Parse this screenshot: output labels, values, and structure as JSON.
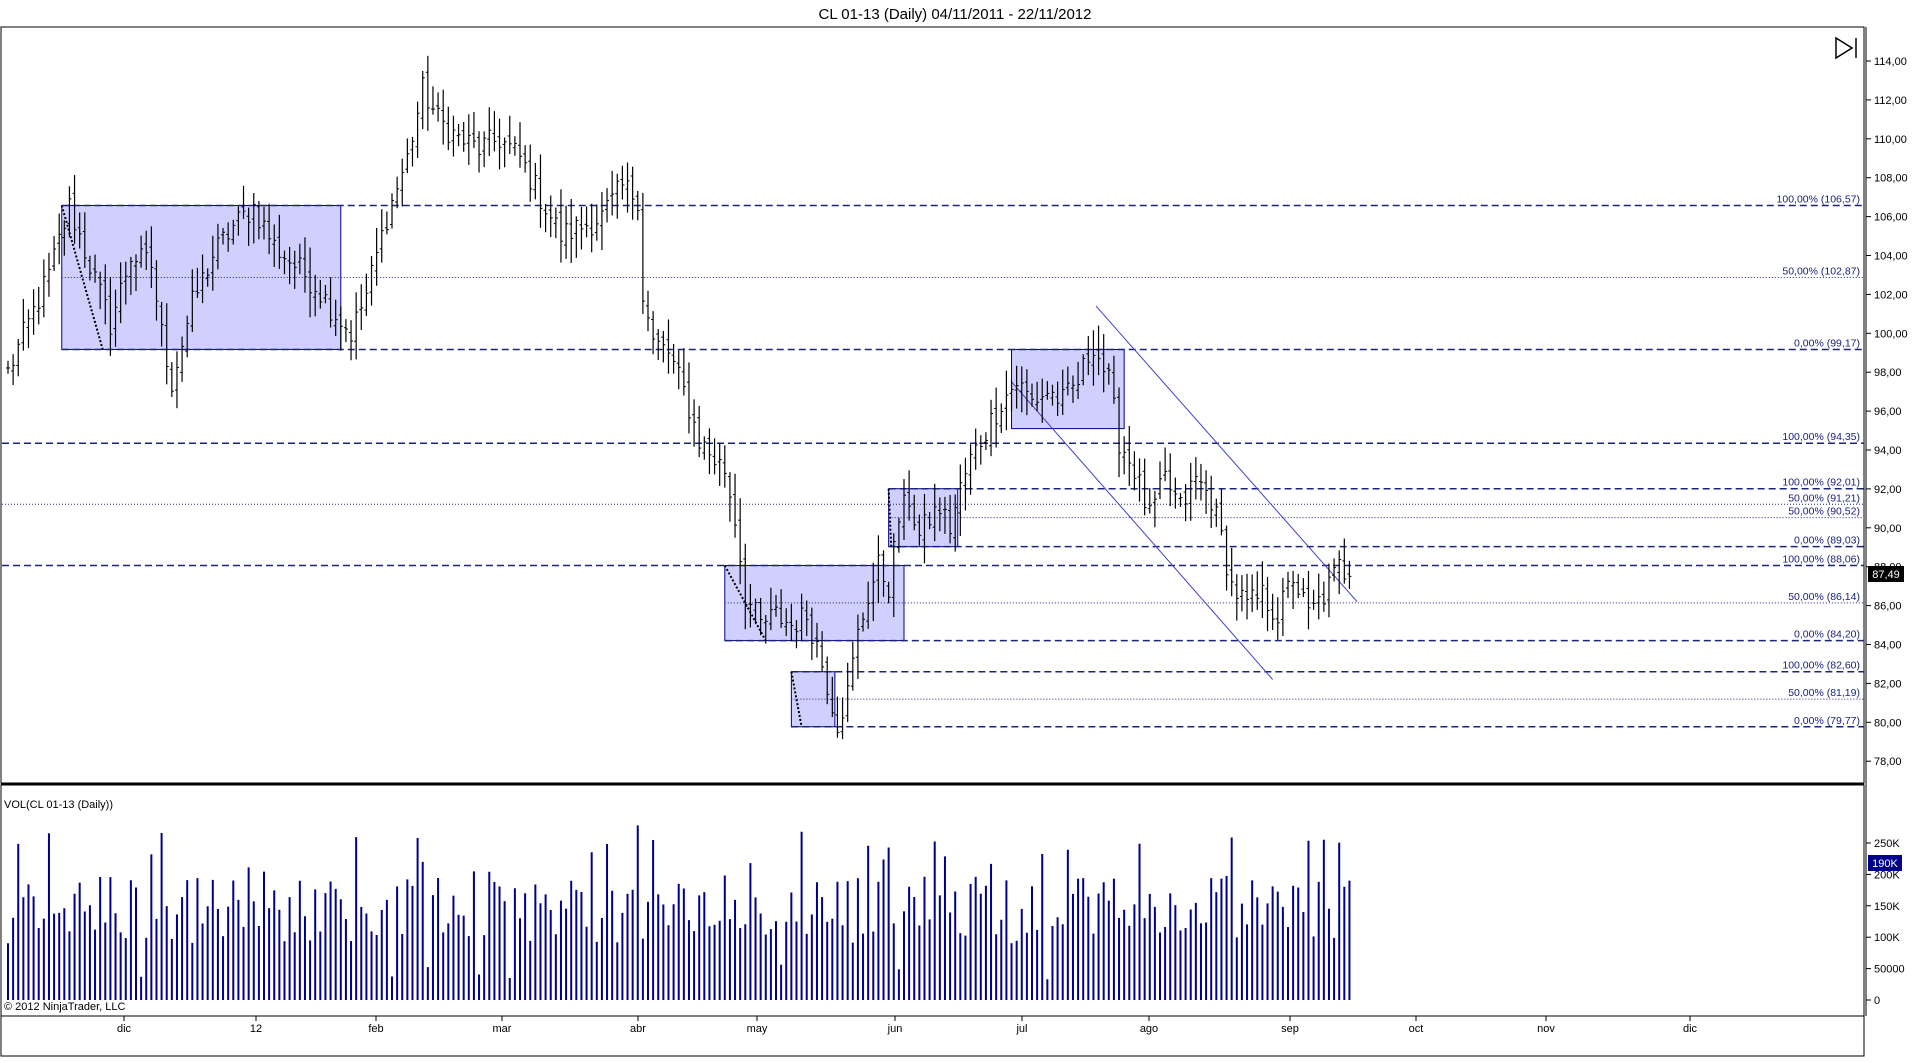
{
  "header": {
    "title": "CL 01-13 (Daily)  04/11/2011 - 22/11/2012"
  },
  "price_panel": {
    "last_price": "87,49"
  },
  "volume_panel": {
    "title": "VOL(CL 01-13 (Daily))",
    "last_volume": "190K"
  },
  "copyright": "© 2012 NinjaTrader, LLC",
  "colors": {
    "bar": "#000000",
    "volume": "#00008b",
    "zone_fill": "#c8c8ff",
    "zone_edge": "#00008b",
    "channel": "#4040c8",
    "level": "#1a237e"
  },
  "chart_data": [
    {
      "type": "ohlc",
      "instrument": "CL 01-13",
      "interval": "Daily",
      "ylim": [
        77,
        115.5
      ],
      "y_ticks": [
        "114,00",
        "112,00",
        "110,00",
        "108,00",
        "106,00",
        "104,00",
        "102,00",
        "100,00",
        "98,00",
        "96,00",
        "94,00",
        "92,00",
        "90,00",
        "88,00",
        "86,00",
        "84,00",
        "82,00",
        "80,00",
        "78,00"
      ],
      "x_ticks": [
        "dic",
        "12",
        "feb",
        "mar",
        "abr",
        "may",
        "jun",
        "jul",
        "ago",
        "sep",
        "oct",
        "nov",
        "dic"
      ],
      "anchors": [
        {
          "i": 0,
          "c": 98.0
        },
        {
          "i": 4,
          "c": 100.5
        },
        {
          "i": 8,
          "c": 103.0
        },
        {
          "i": 12,
          "c": 106.5
        },
        {
          "i": 16,
          "c": 103.5
        },
        {
          "i": 20,
          "c": 100.5
        },
        {
          "i": 24,
          "c": 104.0
        },
        {
          "i": 28,
          "c": 103.5
        },
        {
          "i": 30,
          "c": 100.0
        },
        {
          "i": 32,
          "c": 97.5
        },
        {
          "i": 36,
          "c": 101.5
        },
        {
          "i": 40,
          "c": 104.0
        },
        {
          "i": 44,
          "c": 105.5
        },
        {
          "i": 48,
          "c": 106.5
        },
        {
          "i": 52,
          "c": 104.5
        },
        {
          "i": 56,
          "c": 103.5
        },
        {
          "i": 60,
          "c": 102.5
        },
        {
          "i": 64,
          "c": 101.0
        },
        {
          "i": 67,
          "c": 100.0
        },
        {
          "i": 70,
          "c": 102.0
        },
        {
          "i": 74,
          "c": 106.0
        },
        {
          "i": 78,
          "c": 109.0
        },
        {
          "i": 81,
          "c": 112.5
        },
        {
          "i": 84,
          "c": 111.0
        },
        {
          "i": 88,
          "c": 110.0
        },
        {
          "i": 92,
          "c": 109.5
        },
        {
          "i": 96,
          "c": 110.0
        },
        {
          "i": 100,
          "c": 109.0
        },
        {
          "i": 104,
          "c": 107.0
        },
        {
          "i": 108,
          "c": 105.0
        },
        {
          "i": 112,
          "c": 105.5
        },
        {
          "i": 116,
          "c": 106.0
        },
        {
          "i": 120,
          "c": 107.5
        },
        {
          "i": 123,
          "c": 107.0
        },
        {
          "i": 124,
          "c": 102.0
        },
        {
          "i": 126,
          "c": 99.5
        },
        {
          "i": 129,
          "c": 99.0
        },
        {
          "i": 132,
          "c": 97.0
        },
        {
          "i": 135,
          "c": 94.5
        },
        {
          "i": 138,
          "c": 93.5
        },
        {
          "i": 140,
          "c": 93.0
        },
        {
          "i": 142,
          "c": 90.5
        },
        {
          "i": 144,
          "c": 86.5
        },
        {
          "i": 147,
          "c": 85.0
        },
        {
          "i": 150,
          "c": 85.5
        },
        {
          "i": 153,
          "c": 85.0
        },
        {
          "i": 156,
          "c": 85.5
        },
        {
          "i": 158,
          "c": 84.0
        },
        {
          "i": 160,
          "c": 82.0
        },
        {
          "i": 162,
          "c": 80.0
        },
        {
          "i": 164,
          "c": 81.5
        },
        {
          "i": 166,
          "c": 84.5
        },
        {
          "i": 168,
          "c": 86.5
        },
        {
          "i": 170,
          "c": 88.0
        },
        {
          "i": 172,
          "c": 87.0
        },
        {
          "i": 174,
          "c": 90.5
        },
        {
          "i": 176,
          "c": 91.5
        },
        {
          "i": 178,
          "c": 89.5
        },
        {
          "i": 180,
          "c": 90.5
        },
        {
          "i": 182,
          "c": 91.0
        },
        {
          "i": 184,
          "c": 90.0
        },
        {
          "i": 186,
          "c": 92.0
        },
        {
          "i": 188,
          "c": 93.5
        },
        {
          "i": 191,
          "c": 95.0
        },
        {
          "i": 194,
          "c": 96.5
        },
        {
          "i": 197,
          "c": 97.5
        },
        {
          "i": 200,
          "c": 96.5
        },
        {
          "i": 203,
          "c": 97.0
        },
        {
          "i": 206,
          "c": 96.5
        },
        {
          "i": 209,
          "c": 97.5
        },
        {
          "i": 212,
          "c": 99.5
        },
        {
          "i": 215,
          "c": 97.5
        },
        {
          "i": 217,
          "c": 94.5
        },
        {
          "i": 220,
          "c": 93.0
        },
        {
          "i": 223,
          "c": 90.5
        },
        {
          "i": 226,
          "c": 92.5
        },
        {
          "i": 229,
          "c": 91.0
        },
        {
          "i": 232,
          "c": 92.5
        },
        {
          "i": 235,
          "c": 91.5
        },
        {
          "i": 237,
          "c": 89.5
        },
        {
          "i": 239,
          "c": 87.0
        },
        {
          "i": 242,
          "c": 86.0
        },
        {
          "i": 245,
          "c": 86.5
        },
        {
          "i": 248,
          "c": 85.5
        },
        {
          "i": 251,
          "c": 87.5
        },
        {
          "i": 254,
          "c": 85.5
        },
        {
          "i": 257,
          "c": 86.5
        },
        {
          "i": 260,
          "c": 88.0
        },
        {
          "i": 262,
          "c": 87.5
        }
      ]
    },
    {
      "type": "fibonacci_levels",
      "levels": [
        {
          "label": "100,00% (106,57)",
          "value": 106.57
        },
        {
          "label": "50,00% (102,87)",
          "value": 102.87
        },
        {
          "label": "0,00% (99,17)",
          "value": 99.17
        },
        {
          "label": "100,00% (94,35)",
          "value": 94.35
        },
        {
          "label": "100,00% (92,01)",
          "value": 92.01
        },
        {
          "label": "50,00% (91,21)",
          "value": 91.21
        },
        {
          "label": "50,00% (90,52)",
          "value": 90.52
        },
        {
          "label": "0,00% (89,03)",
          "value": 89.03
        },
        {
          "label": "100,00% (88,06)",
          "value": 88.06
        },
        {
          "label": "50,00% (86,14)",
          "value": 86.14
        },
        {
          "label": "0,00% (84,20)",
          "value": 84.2
        },
        {
          "label": "100,00% (82,60)",
          "value": 82.6
        },
        {
          "label": "50,00% (81,19)",
          "value": 81.19
        },
        {
          "label": "0,00% (79,77)",
          "value": 79.77
        }
      ]
    },
    {
      "type": "bar",
      "name": "VOL(CL 01-13 (Daily))",
      "ylim": [
        0,
        290000
      ],
      "y_ticks": [
        "250K",
        "200K",
        "150K",
        "100K",
        "50000",
        "0"
      ]
    }
  ]
}
